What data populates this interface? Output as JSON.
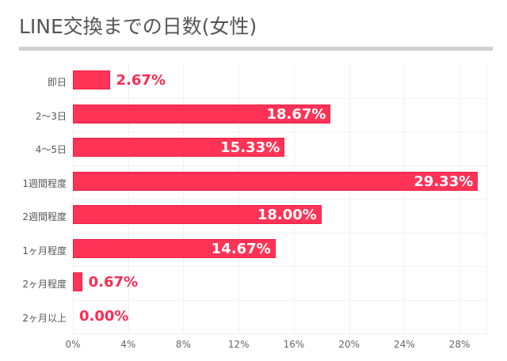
{
  "title": "LINE交換までの日数(女性)",
  "colors": {
    "bar": "#ff3355",
    "label_outside": "#ff2a52",
    "title": "#555555"
  },
  "chart_data": {
    "type": "bar",
    "orientation": "horizontal",
    "title": "LINE交換までの日数(女性)",
    "xlabel": "",
    "ylabel": "",
    "xlim": [
      0,
      30
    ],
    "grid": true,
    "categories": [
      "即日",
      "2〜3日",
      "4〜5日",
      "1週間程度",
      "2週間程度",
      "1ヶ月程度",
      "2ヶ月程度",
      "2ヶ月以上"
    ],
    "values": [
      2.67,
      18.67,
      15.33,
      29.33,
      18.0,
      14.67,
      0.67,
      0.0
    ],
    "value_labels": [
      "2.67%",
      "18.67%",
      "15.33%",
      "29.33%",
      "18.00%",
      "14.67%",
      "0.67%",
      "0.00%"
    ],
    "x_ticks": [
      "0%",
      "4%",
      "8%",
      "12%",
      "16%",
      "20%",
      "24%",
      "28%"
    ]
  }
}
